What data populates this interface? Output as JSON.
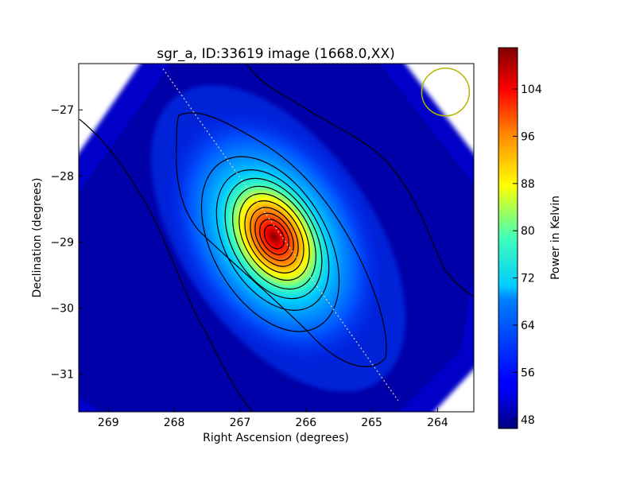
{
  "chart_data": {
    "type": "heatmap",
    "title": "sgr_a, ID:33619 image (1668.0,XX)",
    "xlabel": "Right Ascension (degrees)",
    "ylabel": "Declination (degrees)",
    "colorbar_label": "Power in Kelvin",
    "xlim": [
      269.45,
      263.45
    ],
    "ylim": [
      -31.57,
      -26.3
    ],
    "x_ticks": [
      269,
      268,
      267,
      266,
      265,
      264
    ],
    "y_ticks": [
      -27,
      -28,
      -29,
      -30,
      -31
    ],
    "x_tick_labels": [
      "269",
      "268",
      "267",
      "266",
      "265",
      "264"
    ],
    "y_tick_labels": [
      "−27",
      "−28",
      "−29",
      "−30",
      "−31"
    ],
    "colorbar": {
      "range": [
        46.5,
        111
      ],
      "ticks": [
        48,
        56,
        64,
        72,
        80,
        88,
        96,
        104
      ],
      "tick_labels": [
        "48",
        "56",
        "64",
        "72",
        "80",
        "88",
        "96",
        "104"
      ],
      "colormap": "jet"
    },
    "peak": {
      "ra": 266.42,
      "dec": -28.94,
      "value": 110
    },
    "beam_circle": {
      "ra": 263.88,
      "dec": -26.73,
      "color": "#b5b500"
    },
    "scan_line": {
      "from": {
        "ra": 268.17,
        "dec": -26.38
      },
      "to": {
        "ra": 264.6,
        "dec": -31.4
      }
    },
    "contour_levels": [
      52,
      56,
      62,
      68,
      74,
      80,
      86,
      92,
      98,
      104
    ]
  }
}
